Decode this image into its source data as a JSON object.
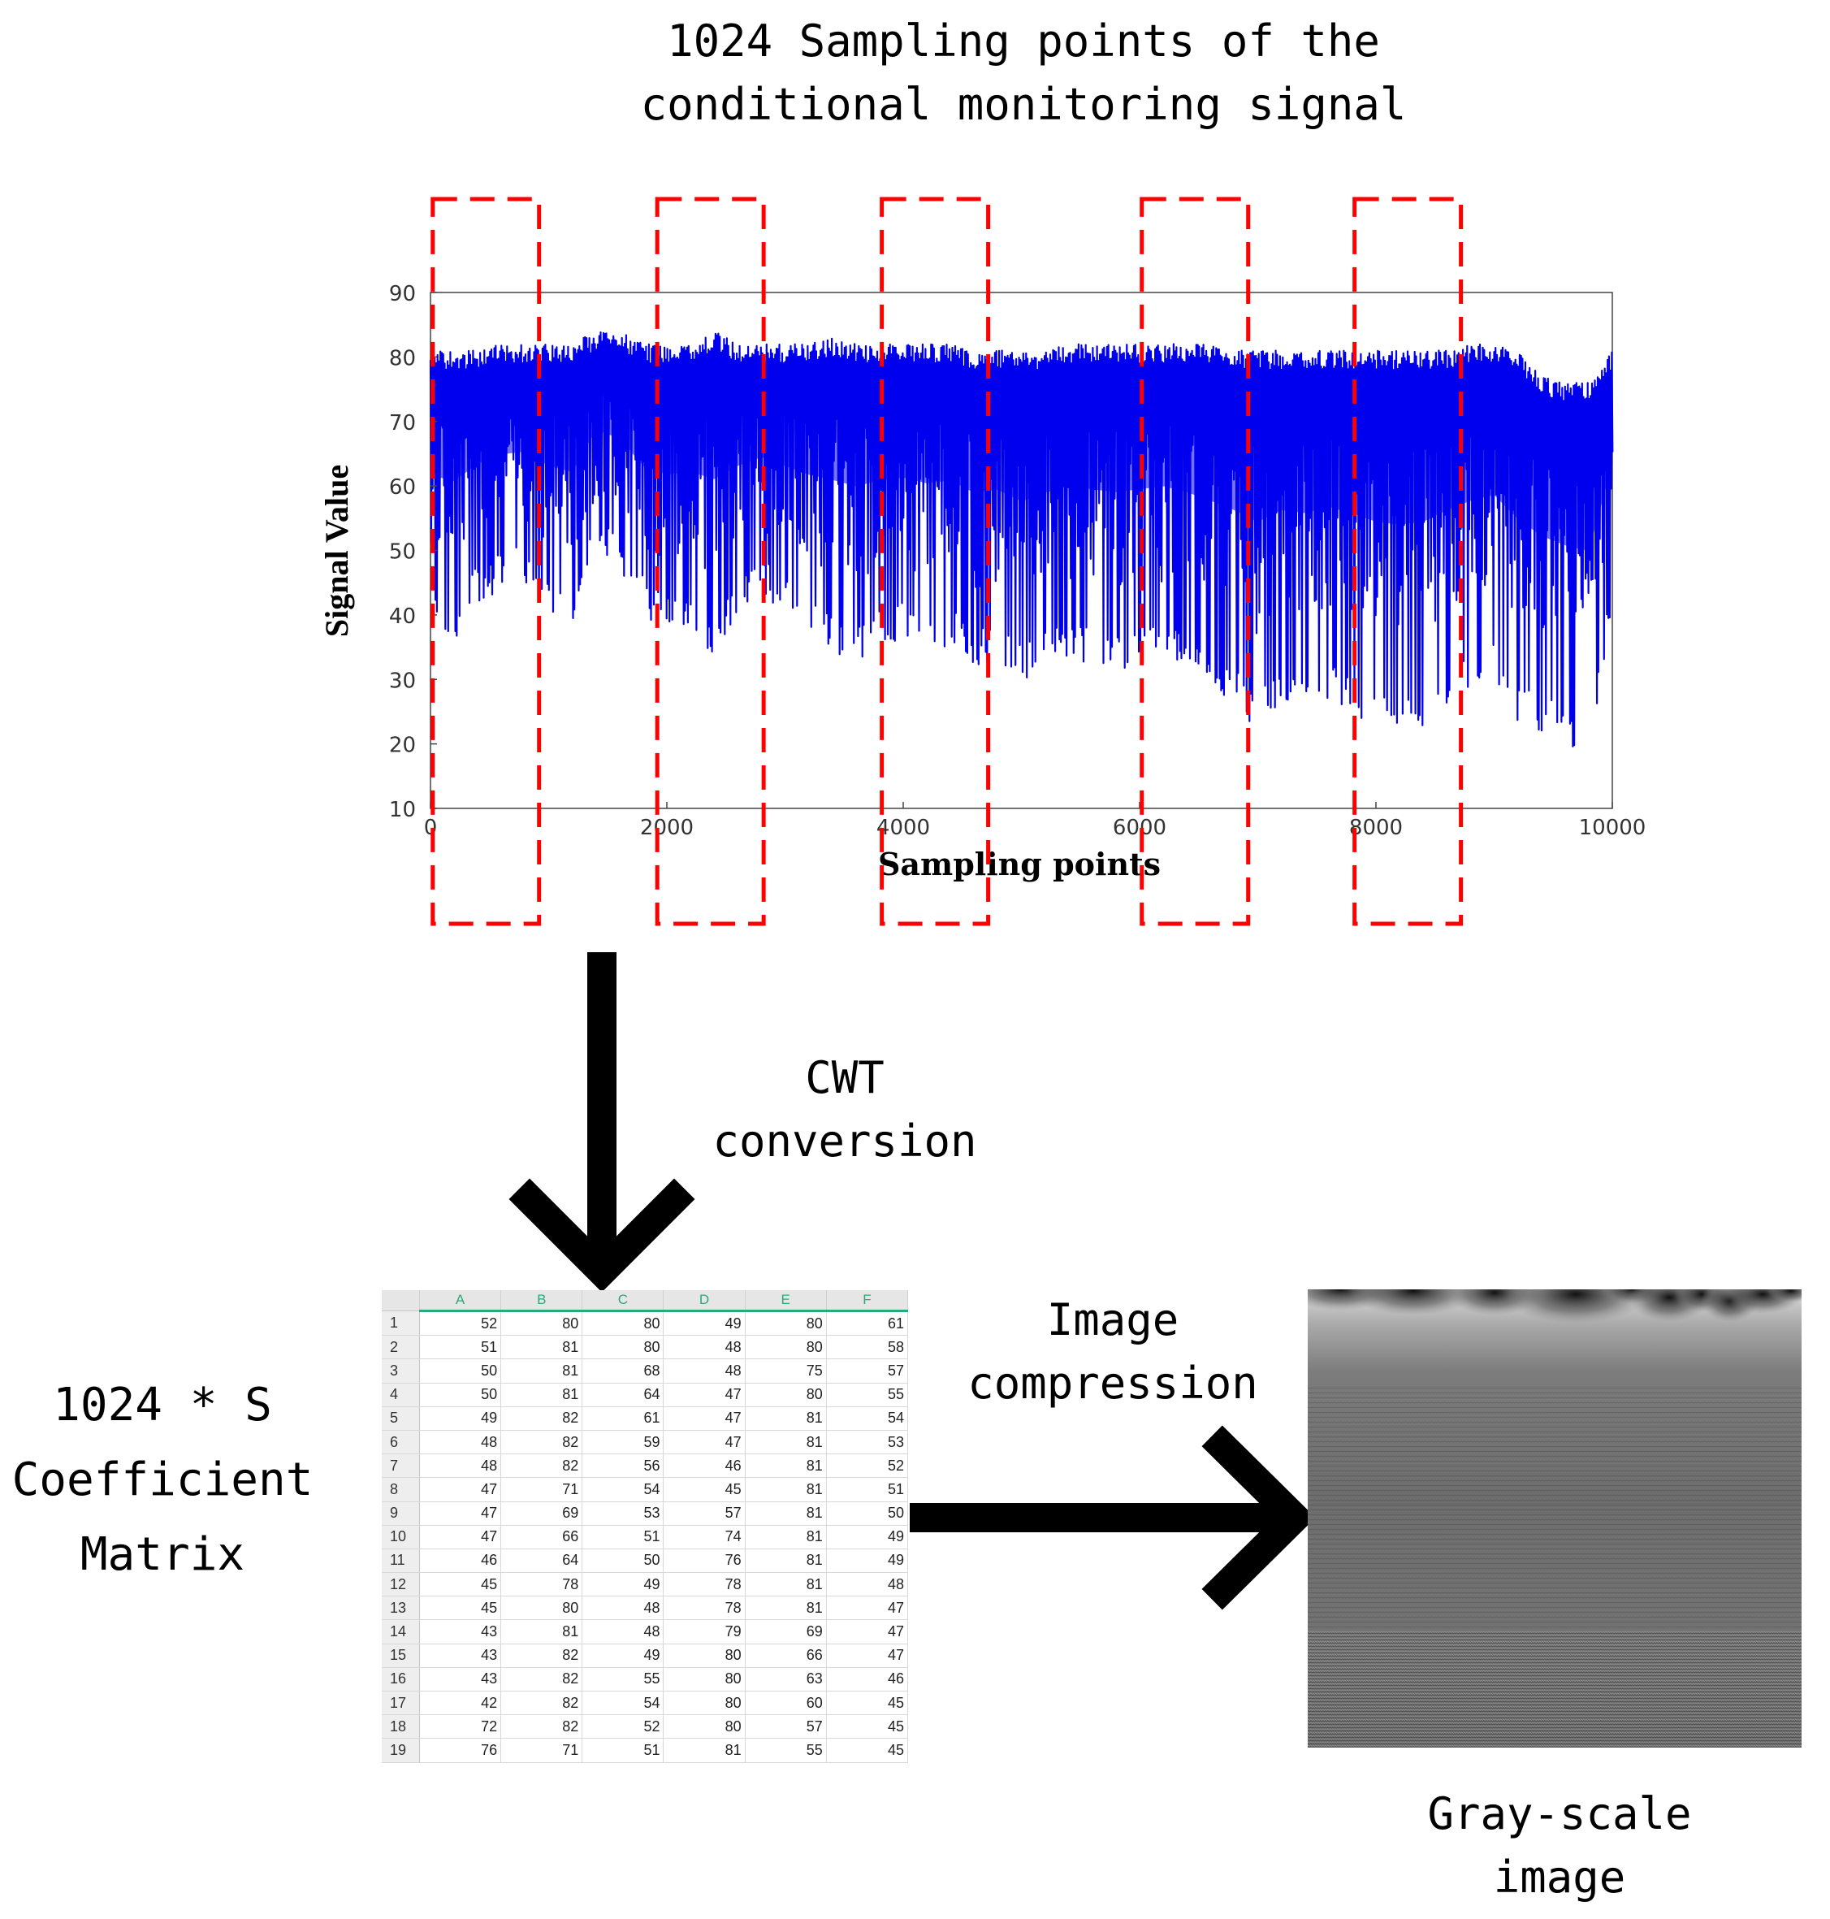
{
  "title": {
    "line1": "1024 Sampling points of the",
    "line2": "conditional monitoring signal"
  },
  "chart_data": {
    "type": "line",
    "xlabel": "Sampling points",
    "ylabel": "Signal Value",
    "xlim": [
      0,
      10000
    ],
    "ylim": [
      10,
      90
    ],
    "x_ticks": [
      0,
      2000,
      4000,
      6000,
      8000,
      10000
    ],
    "y_ticks": [
      10,
      20,
      30,
      40,
      50,
      60,
      70,
      80,
      90
    ],
    "grid": false,
    "series": [
      {
        "color": "#0000ee",
        "x": [
          0,
          200,
          400,
          600,
          800,
          1000,
          1200,
          1400,
          1600,
          1800,
          2000,
          2200,
          2400,
          2600,
          2800,
          3000,
          3200,
          3400,
          3600,
          3800,
          4000,
          4200,
          4400,
          4600,
          4800,
          5000,
          5200,
          5400,
          5600,
          5800,
          6000,
          6200,
          6400,
          6600,
          6800,
          7000,
          7200,
          7400,
          7600,
          7800,
          8000,
          8200,
          8400,
          8600,
          8800,
          9000,
          9200,
          9400,
          9600,
          9800,
          10000
        ],
        "upper": [
          81,
          81,
          81,
          82,
          82,
          82,
          82,
          84,
          84,
          82,
          82,
          82,
          84,
          82,
          82,
          82,
          82,
          83,
          82,
          82,
          82,
          82,
          82,
          81,
          81,
          81,
          81,
          82,
          82,
          82,
          82,
          82,
          82,
          82,
          81,
          81,
          81,
          81,
          81,
          81,
          81,
          81,
          81,
          81,
          82,
          82,
          81,
          77,
          76,
          76,
          81
        ],
        "lower": [
          38,
          36,
          42,
          44,
          45,
          40,
          38,
          50,
          47,
          40,
          37,
          38,
          33,
          40,
          43,
          40,
          37,
          34,
          33,
          35,
          36,
          34,
          35,
          32,
          33,
          29,
          32,
          33,
          32,
          31,
          32,
          33,
          31,
          28,
          26,
          22,
          26,
          25,
          27,
          25,
          22,
          21,
          22,
          26,
          28,
          30,
          23,
          22,
          20,
          18,
          42
        ]
      }
    ],
    "highlight_boxes_x": [
      [
        500,
        1400
      ],
      [
        2400,
        3300
      ],
      [
        4300,
        5200
      ],
      [
        6500,
        7400
      ],
      [
        8300,
        9200
      ]
    ]
  },
  "flow": {
    "cwt_label": {
      "line1": "CWT",
      "line2": "conversion"
    },
    "compression_label": {
      "line1": "Image",
      "line2": "compression"
    }
  },
  "matrix": {
    "label": {
      "line1": "1024 * S",
      "line2": "Coefficient",
      "line3": "Matrix"
    },
    "columns": [
      "A",
      "B",
      "C",
      "D",
      "E",
      "F"
    ],
    "rows": [
      {
        "n": "1",
        "v": [
          "52",
          "80",
          "80",
          "49",
          "80",
          "61"
        ]
      },
      {
        "n": "2",
        "v": [
          "51",
          "81",
          "80",
          "48",
          "80",
          "58"
        ]
      },
      {
        "n": "3",
        "v": [
          "50",
          "81",
          "68",
          "48",
          "75",
          "57"
        ]
      },
      {
        "n": "4",
        "v": [
          "50",
          "81",
          "64",
          "47",
          "80",
          "55"
        ]
      },
      {
        "n": "5",
        "v": [
          "49",
          "82",
          "61",
          "47",
          "81",
          "54"
        ]
      },
      {
        "n": "6",
        "v": [
          "48",
          "82",
          "59",
          "47",
          "81",
          "53"
        ]
      },
      {
        "n": "7",
        "v": [
          "48",
          "82",
          "56",
          "46",
          "81",
          "52"
        ]
      },
      {
        "n": "8",
        "v": [
          "47",
          "71",
          "54",
          "45",
          "81",
          "51"
        ]
      },
      {
        "n": "9",
        "v": [
          "47",
          "69",
          "53",
          "57",
          "81",
          "50"
        ]
      },
      {
        "n": "10",
        "v": [
          "47",
          "66",
          "51",
          "74",
          "81",
          "49"
        ]
      },
      {
        "n": "11",
        "v": [
          "46",
          "64",
          "50",
          "76",
          "81",
          "49"
        ]
      },
      {
        "n": "12",
        "v": [
          "45",
          "78",
          "49",
          "78",
          "81",
          "48"
        ]
      },
      {
        "n": "13",
        "v": [
          "45",
          "80",
          "48",
          "78",
          "81",
          "47"
        ]
      },
      {
        "n": "14",
        "v": [
          "43",
          "81",
          "48",
          "79",
          "69",
          "47"
        ]
      },
      {
        "n": "15",
        "v": [
          "43",
          "82",
          "49",
          "80",
          "66",
          "47"
        ]
      },
      {
        "n": "16",
        "v": [
          "43",
          "82",
          "55",
          "80",
          "63",
          "46"
        ]
      },
      {
        "n": "17",
        "v": [
          "42",
          "82",
          "54",
          "80",
          "60",
          "45"
        ]
      },
      {
        "n": "18",
        "v": [
          "72",
          "82",
          "52",
          "80",
          "57",
          "45"
        ]
      },
      {
        "n": "19",
        "v": [
          "76",
          "71",
          "51",
          "81",
          "55",
          "45"
        ]
      }
    ]
  },
  "grayscale": {
    "label": {
      "line1": "Gray-scale",
      "line2": "image"
    }
  }
}
